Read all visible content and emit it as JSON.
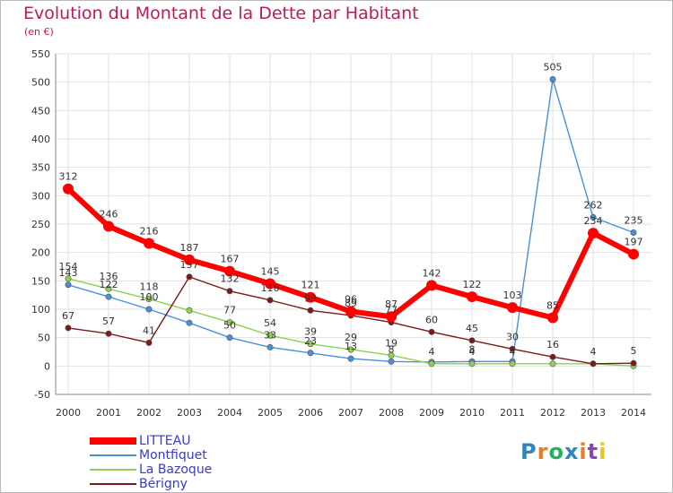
{
  "title": "Evolution du Montant de la Dette par Habitant",
  "unit": "(en €)",
  "logo": {
    "text": "Proxiti",
    "letters": [
      {
        "ch": "P",
        "color": "#2e86c1"
      },
      {
        "ch": "r",
        "color": "#e67e22"
      },
      {
        "ch": "o",
        "color": "#27ae60"
      },
      {
        "ch": "x",
        "color": "#2e86c1"
      },
      {
        "ch": "i",
        "color": "#e67e22"
      },
      {
        "ch": "t",
        "color": "#8e44ad"
      },
      {
        "ch": "i",
        "color": "#f1c40f"
      }
    ]
  },
  "chart_data": {
    "type": "line",
    "title": "Evolution du Montant de la Dette par Habitant",
    "xlabel": "",
    "ylabel": "(en €)",
    "ylim": [
      -50,
      550
    ],
    "yticks": [
      -50,
      0,
      50,
      100,
      150,
      200,
      250,
      300,
      350,
      400,
      450,
      500,
      550
    ],
    "grid": true,
    "legend": "bottom-left",
    "x": [
      "2000",
      "2001",
      "2002",
      "2003",
      "2004",
      "2005",
      "2006",
      "2007",
      "2008",
      "2009",
      "2010",
      "2011",
      "2012",
      "2013",
      "2014"
    ],
    "series": [
      {
        "name": "LITTEAU",
        "color": "#ff0000",
        "values": [
          312,
          246,
          216,
          187,
          167,
          145,
          121,
          96,
          87,
          142,
          122,
          103,
          85,
          234,
          197
        ],
        "labels": [
          "312",
          "246",
          "216",
          "187",
          "167",
          "145",
          "121",
          "96",
          "87",
          "142",
          "122",
          "103",
          "85",
          "234",
          "197"
        ]
      },
      {
        "name": "Montfiquet",
        "color": "#4a90d9",
        "values": [
          143,
          122,
          100,
          76,
          50,
          33,
          23,
          13,
          8,
          7,
          8,
          8,
          505,
          262,
          235
        ],
        "labels": [
          "143",
          "122",
          "100",
          "",
          "50",
          "33",
          "23",
          "13",
          "8",
          "",
          "8",
          "",
          "505",
          "262",
          "235"
        ]
      },
      {
        "name": "La Bazoque",
        "color": "#8fd14f",
        "values": [
          154,
          136,
          118,
          98,
          77,
          54,
          39,
          29,
          19,
          4,
          4,
          4,
          4,
          4,
          0
        ],
        "labels": [
          "154",
          "136",
          "118",
          "",
          "77",
          "54",
          "39",
          "29",
          "19",
          "4",
          "4",
          "4",
          "",
          "",
          ""
        ]
      },
      {
        "name": "Bérigny",
        "color": "#7a1a1a",
        "values": [
          67,
          57,
          41,
          157,
          132,
          116,
          98,
          89,
          77,
          60,
          45,
          30,
          16,
          4,
          5
        ],
        "labels": [
          "67",
          "57",
          "41",
          "157",
          "132",
          "116",
          "98",
          "89",
          "77",
          "60",
          "45",
          "30",
          "16",
          "4",
          "5"
        ]
      }
    ]
  }
}
